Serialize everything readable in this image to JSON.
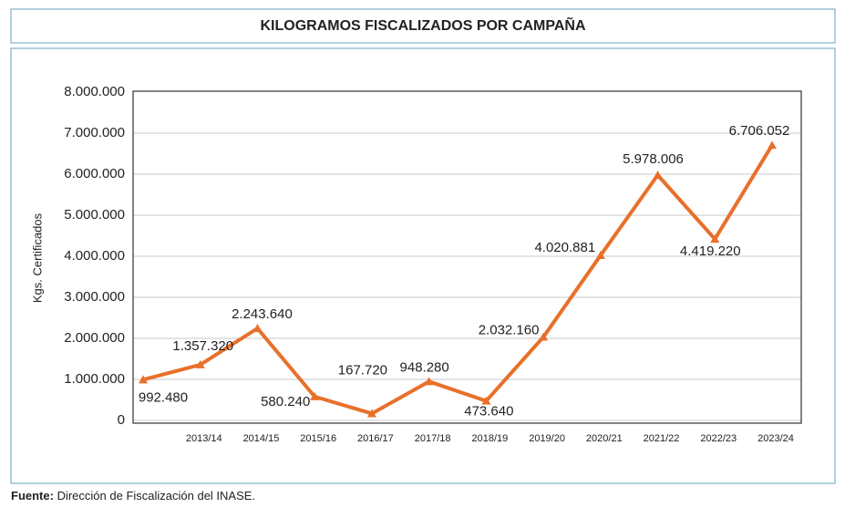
{
  "chart_data": {
    "type": "line",
    "title": "KILOGRAMOS FISCALIZADOS POR CAMPAÑA",
    "y_label": "Kgs. Certificados",
    "categories": [
      null,
      "2013/14",
      "2014/15",
      "2015/16",
      "2016/17",
      "2017/18",
      "2018/19",
      "2019/20",
      "2020/21",
      "2021/22",
      "2022/23",
      "2023/24"
    ],
    "values": [
      992480,
      1357320,
      2243640,
      580240,
      167720,
      948280,
      473640,
      2032160,
      4020881,
      5978006,
      4419220,
      6706052
    ],
    "value_labels": [
      "992.480",
      "1.357.320",
      "2.243.640",
      "580.240",
      "167.720",
      "948.280",
      "473.640",
      "2.032.160",
      "4.020.881",
      "5.978.006",
      "4.419.220",
      "6.706.052"
    ],
    "color": "#e8702a",
    "ylim": [
      0,
      8000000
    ],
    "yticks": [
      0,
      {
        "value": 1000000,
        "label": "1.000.000"
      },
      {
        "value": 2000000,
        "label": "2.000.000"
      },
      {
        "value": 3000000,
        "label": "3.000.000"
      },
      {
        "value": 4000000,
        "label": "4.000.000"
      },
      {
        "value": 5000000,
        "label": "5.000.000"
      },
      {
        "value": 6000000,
        "label": "6.000.000"
      },
      {
        "value": 7000000,
        "label": "7.000.000"
      },
      {
        "value": 8000000,
        "label": "8.000.000"
      }
    ],
    "grid": true
  },
  "footer": {
    "label": "Fuente:",
    "text": "Dirección de Fiscalización del INASE."
  }
}
